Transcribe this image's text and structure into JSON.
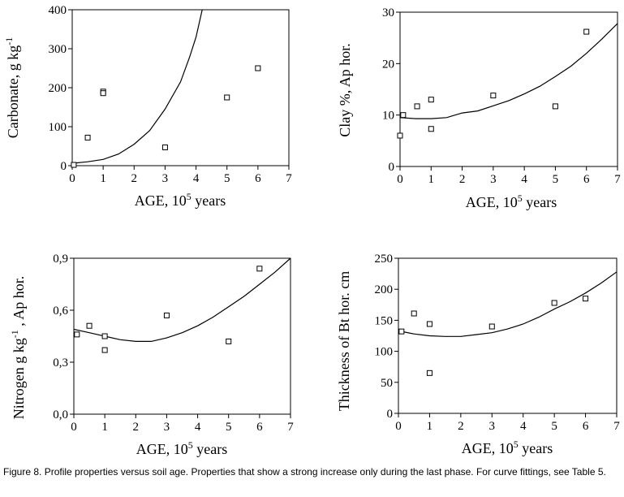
{
  "chart_data": [
    {
      "type": "scatter",
      "ylabel": "Carbonate, g kg-1",
      "xlabel": "AGE, 105 years",
      "xlim": [
        0,
        7
      ],
      "ylim": [
        0,
        400
      ],
      "xticks": [
        "0",
        "1",
        "2",
        "3",
        "4",
        "5",
        "6",
        "7"
      ],
      "yticks": [
        "0",
        "100",
        "200",
        "300",
        "400"
      ],
      "points": [
        [
          0.05,
          2
        ],
        [
          0.5,
          72
        ],
        [
          1.0,
          190
        ],
        [
          1.0,
          186
        ],
        [
          3.0,
          47
        ],
        [
          5.0,
          175
        ],
        [
          6.0,
          250
        ]
      ],
      "fit_curve": [
        [
          0,
          6
        ],
        [
          0.5,
          10
        ],
        [
          1,
          16
        ],
        [
          1.5,
          30
        ],
        [
          2,
          55
        ],
        [
          2.5,
          90
        ],
        [
          3,
          145
        ],
        [
          3.5,
          215
        ],
        [
          3.8,
          280
        ],
        [
          4.0,
          330
        ],
        [
          4.2,
          400
        ]
      ]
    },
    {
      "type": "scatter",
      "ylabel": "Clay %,  Ap hor.",
      "xlabel": "AGE, 105 years",
      "xlim": [
        0,
        7
      ],
      "ylim": [
        0,
        30
      ],
      "xticks": [
        "0",
        "1",
        "2",
        "3",
        "4",
        "5",
        "6",
        "7"
      ],
      "yticks": [
        "0",
        "10",
        "20",
        "30"
      ],
      "points": [
        [
          0.0,
          6.0
        ],
        [
          0.1,
          10.0
        ],
        [
          0.55,
          11.7
        ],
        [
          1.0,
          13.0
        ],
        [
          1.0,
          7.3
        ],
        [
          3.0,
          13.8
        ],
        [
          5.0,
          11.7
        ],
        [
          6.0,
          26.2
        ]
      ],
      "fit_curve": [
        [
          0,
          9.5
        ],
        [
          0.5,
          9.3
        ],
        [
          1,
          9.3
        ],
        [
          1.5,
          9.5
        ],
        [
          2,
          10.4
        ],
        [
          2.5,
          10.8
        ],
        [
          3,
          11.8
        ],
        [
          3.5,
          12.8
        ],
        [
          4,
          14.1
        ],
        [
          4.5,
          15.6
        ],
        [
          5,
          17.5
        ],
        [
          5.5,
          19.5
        ],
        [
          6,
          22
        ],
        [
          6.5,
          24.8
        ],
        [
          7,
          27.8
        ]
      ]
    },
    {
      "type": "scatter",
      "ylabel": "Nitrogen g kg-1 ,  Ap hor.",
      "xlabel": "AGE, 105 years",
      "xlim": [
        0,
        7
      ],
      "ylim": [
        0,
        0.9
      ],
      "xticks": [
        "0",
        "1",
        "2",
        "3",
        "4",
        "5",
        "6",
        "7"
      ],
      "yticks": [
        "0,0",
        "0,3",
        "0,6",
        "0,9"
      ],
      "points": [
        [
          0.1,
          0.46
        ],
        [
          0.5,
          0.51
        ],
        [
          1.0,
          0.45
        ],
        [
          1.0,
          0.37
        ],
        [
          3.0,
          0.57
        ],
        [
          5.0,
          0.42
        ],
        [
          6.0,
          0.84
        ]
      ],
      "fit_curve": [
        [
          0,
          0.49
        ],
        [
          0.5,
          0.47
        ],
        [
          1,
          0.45
        ],
        [
          1.5,
          0.43
        ],
        [
          2,
          0.42
        ],
        [
          2.5,
          0.42
        ],
        [
          3,
          0.44
        ],
        [
          3.5,
          0.47
        ],
        [
          4,
          0.51
        ],
        [
          4.5,
          0.56
        ],
        [
          5,
          0.62
        ],
        [
          5.5,
          0.68
        ],
        [
          6,
          0.75
        ],
        [
          6.5,
          0.82
        ],
        [
          7,
          0.9
        ]
      ]
    },
    {
      "type": "scatter",
      "ylabel": "Thickness of Bt hor.  cm",
      "xlabel": "AGE, 105 years",
      "xlim": [
        0,
        7
      ],
      "ylim": [
        0,
        250
      ],
      "xticks": [
        "0",
        "1",
        "2",
        "3",
        "4",
        "5",
        "6",
        "7"
      ],
      "yticks": [
        "0",
        "50",
        "100",
        "150",
        "200",
        "250"
      ],
      "points": [
        [
          0.1,
          132
        ],
        [
          0.5,
          161
        ],
        [
          1.0,
          144
        ],
        [
          1.0,
          65
        ],
        [
          3.0,
          140
        ],
        [
          5.0,
          178
        ],
        [
          6.0,
          185
        ]
      ],
      "fit_curve": [
        [
          0,
          133
        ],
        [
          0.5,
          128
        ],
        [
          1,
          125
        ],
        [
          1.5,
          124
        ],
        [
          2,
          124
        ],
        [
          2.5,
          127
        ],
        [
          3,
          130
        ],
        [
          3.5,
          136
        ],
        [
          4,
          144
        ],
        [
          4.5,
          155
        ],
        [
          5,
          168
        ],
        [
          5.5,
          180
        ],
        [
          6,
          194
        ],
        [
          6.5,
          210
        ],
        [
          7,
          228
        ]
      ]
    }
  ],
  "caption": "Figure 8. Profile properties versus soil age.  Properties that show a strong increase only during the last phase. For curve fittings, see Table 5."
}
